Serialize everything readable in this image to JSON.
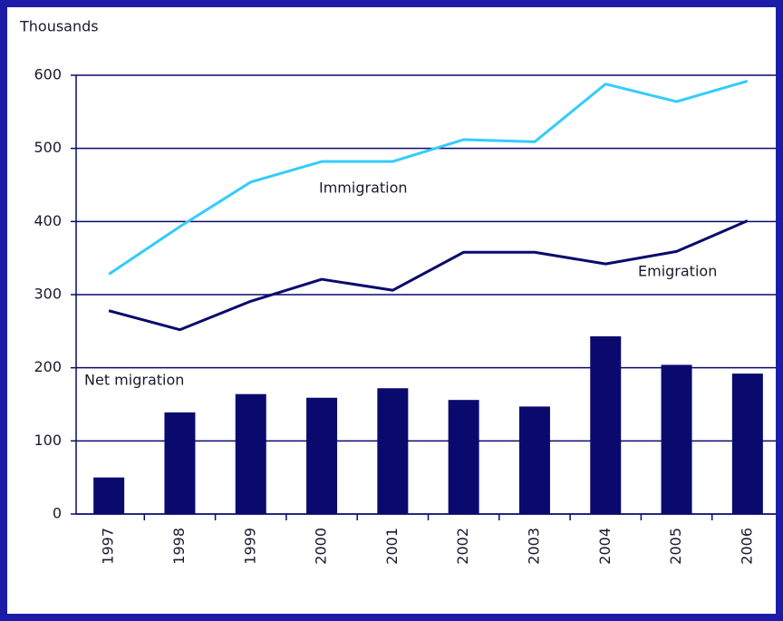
{
  "chart_data": {
    "type": "bar",
    "y_label": "Thousands",
    "categories": [
      "1997",
      "1998",
      "1999",
      "2000",
      "2001",
      "2002",
      "2003",
      "2004",
      "2005",
      "2006"
    ],
    "series": [
      {
        "name": "Net migration",
        "type": "bar",
        "color": "#0a0a6e",
        "values": [
          50,
          139,
          164,
          159,
          172,
          156,
          147,
          243,
          204,
          192
        ]
      },
      {
        "name": "Immigration",
        "type": "line",
        "color": "#33ccff",
        "values": [
          328,
          393,
          454,
          482,
          482,
          512,
          509,
          588,
          564,
          592
        ]
      },
      {
        "name": "Emigration",
        "type": "line",
        "color": "#0a0a6e",
        "values": [
          278,
          252,
          291,
          321,
          306,
          358,
          358,
          342,
          359,
          401
        ]
      }
    ],
    "ylim": [
      0,
      600
    ],
    "yticks": [
      0,
      100,
      200,
      300,
      400,
      500,
      600
    ],
    "grid": true
  }
}
